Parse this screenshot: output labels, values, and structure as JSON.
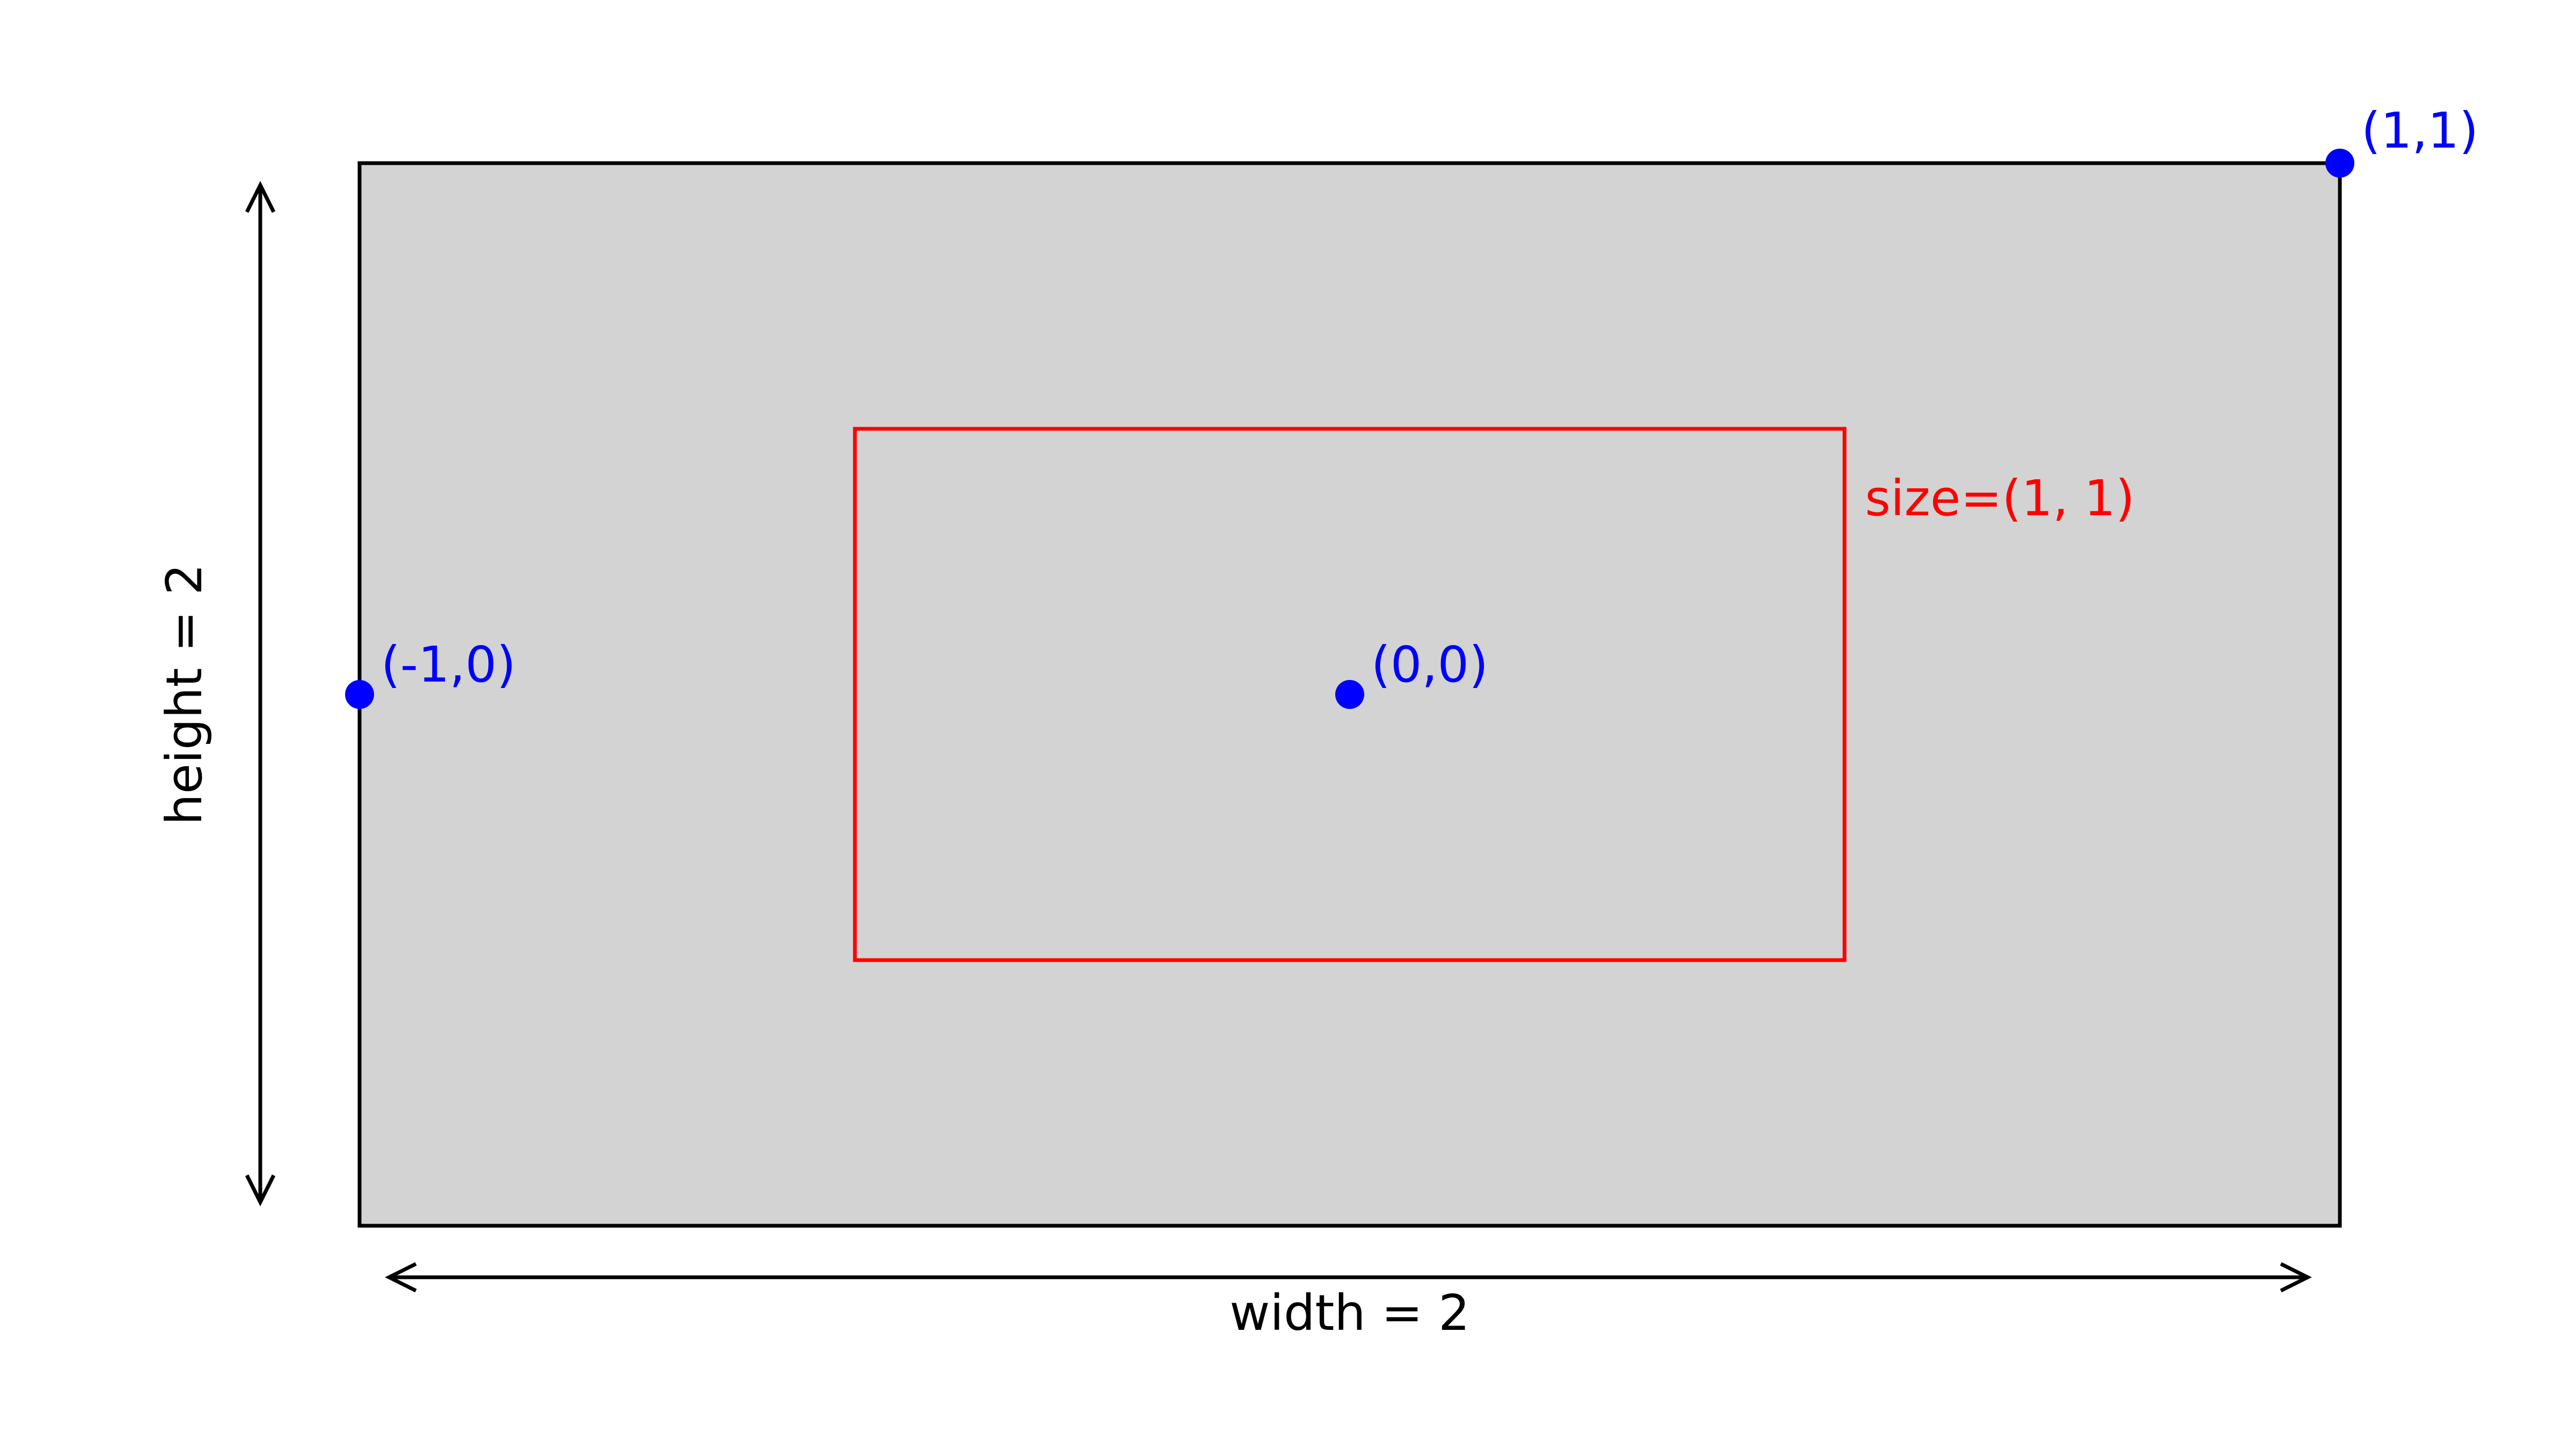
{
  "colors": {
    "background": "#ffffff",
    "outer_fill": "#d3d3d3",
    "outer_stroke": "#000000",
    "inner_stroke": "#ff0000",
    "points": "#0000ff",
    "dimension": "#000000"
  },
  "labels": {
    "point_top_right": "(1,1)",
    "point_left": "(-1,0)",
    "point_center": "(0,0)",
    "inner_size": "size=(1, 1)",
    "width_label": "width = 2",
    "height_label": "height = 2"
  }
}
